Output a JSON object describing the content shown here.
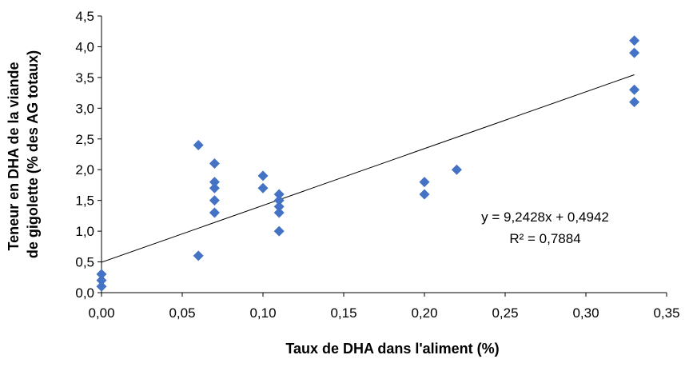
{
  "chart_data": {
    "type": "scatter",
    "xlabel": "Taux de DHA dans l'aliment  (%)",
    "ylabel_lines": [
      "Teneur en DHA de la viande",
      "de gigolette (% des AG totaux)"
    ],
    "xlim": [
      0,
      0.35
    ],
    "ylim": [
      0,
      4.5
    ],
    "x_ticks": [
      "0,00",
      "0,05",
      "0,10",
      "0,15",
      "0,20",
      "0,25",
      "0,30",
      "0,35"
    ],
    "y_ticks": [
      "0,0",
      "0,5",
      "1,0",
      "1,5",
      "2,0",
      "2,5",
      "3,0",
      "3,5",
      "4,0",
      "4,5"
    ],
    "x_tick_values": [
      0,
      0.05,
      0.1,
      0.15,
      0.2,
      0.25,
      0.3,
      0.35
    ],
    "y_tick_values": [
      0,
      0.5,
      1.0,
      1.5,
      2.0,
      2.5,
      3.0,
      3.5,
      4.0,
      4.5
    ],
    "grid": false,
    "legend": false,
    "marker": "diamond",
    "marker_color": "#4472C4",
    "points": [
      {
        "x": 0.0,
        "y": 0.3
      },
      {
        "x": 0.0,
        "y": 0.2
      },
      {
        "x": 0.0,
        "y": 0.1
      },
      {
        "x": 0.06,
        "y": 2.4
      },
      {
        "x": 0.06,
        "y": 0.6
      },
      {
        "x": 0.07,
        "y": 2.1
      },
      {
        "x": 0.07,
        "y": 1.8
      },
      {
        "x": 0.07,
        "y": 1.7
      },
      {
        "x": 0.07,
        "y": 1.5
      },
      {
        "x": 0.07,
        "y": 1.3
      },
      {
        "x": 0.1,
        "y": 1.9
      },
      {
        "x": 0.1,
        "y": 1.7
      },
      {
        "x": 0.11,
        "y": 1.6
      },
      {
        "x": 0.11,
        "y": 1.5
      },
      {
        "x": 0.11,
        "y": 1.4
      },
      {
        "x": 0.11,
        "y": 1.3
      },
      {
        "x": 0.11,
        "y": 1.0
      },
      {
        "x": 0.2,
        "y": 1.8
      },
      {
        "x": 0.2,
        "y": 1.6
      },
      {
        "x": 0.22,
        "y": 2.0
      },
      {
        "x": 0.33,
        "y": 4.1
      },
      {
        "x": 0.33,
        "y": 3.9
      },
      {
        "x": 0.33,
        "y": 3.3
      },
      {
        "x": 0.33,
        "y": 3.1
      }
    ],
    "trendline": {
      "slope": 9.2428,
      "intercept": 0.4942,
      "x_range": [
        0,
        0.33
      ],
      "color": "#000000"
    },
    "annotations": {
      "equation": "y = 9,2428x + 0,4942",
      "r_squared": "R² = 0,7884"
    }
  }
}
